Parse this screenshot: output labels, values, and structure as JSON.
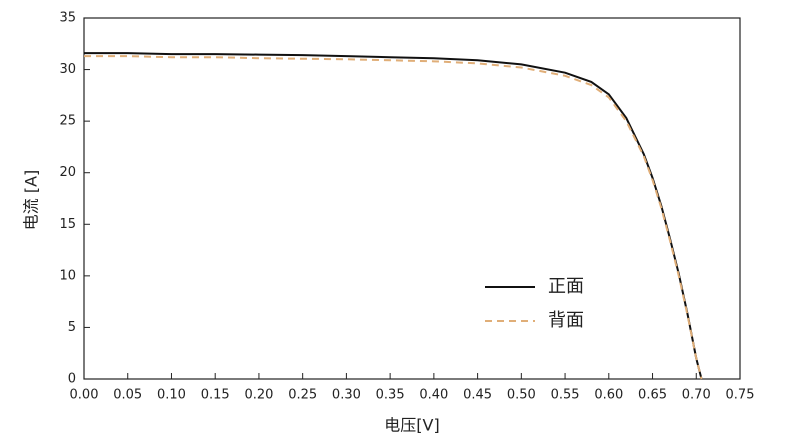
{
  "chart_data": {
    "type": "line",
    "x": [
      0,
      0.05,
      0.1,
      0.15,
      0.2,
      0.25,
      0.3,
      0.35,
      0.4,
      0.45,
      0.5,
      0.55,
      0.58,
      0.6,
      0.62,
      0.64,
      0.65,
      0.66,
      0.67,
      0.68,
      0.69,
      0.7,
      0.706
    ],
    "series": [
      {
        "name": "正面",
        "color": "#111111",
        "dash": false,
        "values": [
          31.6,
          31.6,
          31.5,
          31.5,
          31.45,
          31.4,
          31.3,
          31.2,
          31.1,
          30.9,
          30.5,
          29.7,
          28.8,
          27.6,
          25.3,
          21.8,
          19.5,
          16.8,
          13.6,
          10.2,
          6.3,
          2.0,
          0
        ]
      },
      {
        "name": "背面",
        "color": "#e0ae78",
        "dash": true,
        "values": [
          31.3,
          31.3,
          31.2,
          31.2,
          31.1,
          31.05,
          31.0,
          30.9,
          30.8,
          30.6,
          30.2,
          29.4,
          28.5,
          27.3,
          25.0,
          21.6,
          19.3,
          16.6,
          13.4,
          10.0,
          6.2,
          2.0,
          0
        ]
      }
    ],
    "xlabel": "电压[V]",
    "ylabel": "电流 [A]",
    "xlim": [
      0,
      0.75
    ],
    "ylim": [
      0,
      35
    ],
    "xticks": [
      {
        "value": 0,
        "label": "0.00"
      },
      {
        "value": 0.05,
        "label": "0.05"
      },
      {
        "value": 0.1,
        "label": "0.10"
      },
      {
        "value": 0.15,
        "label": "0.15"
      },
      {
        "value": 0.2,
        "label": "0.20"
      },
      {
        "value": 0.25,
        "label": "0.25"
      },
      {
        "value": 0.3,
        "label": "0.30"
      },
      {
        "value": 0.35,
        "label": "0.35"
      },
      {
        "value": 0.4,
        "label": "0.40"
      },
      {
        "value": 0.45,
        "label": "0.45"
      },
      {
        "value": 0.5,
        "label": "0.50"
      },
      {
        "value": 0.55,
        "label": "0.55"
      },
      {
        "value": 0.6,
        "label": "0.60"
      },
      {
        "value": 0.65,
        "label": "0.65"
      },
      {
        "value": 0.7,
        "label": "0.70"
      },
      {
        "value": 0.75,
        "label": "0.75"
      }
    ],
    "yticks": [
      0,
      5,
      10,
      15,
      20,
      25,
      30,
      35
    ],
    "grid": false,
    "legend": "lower-right"
  }
}
